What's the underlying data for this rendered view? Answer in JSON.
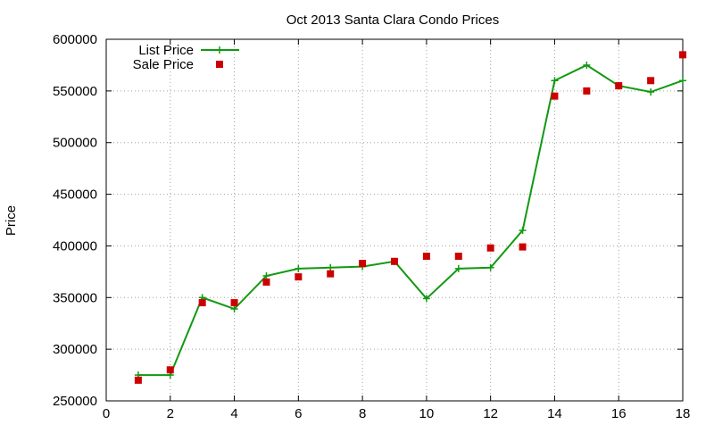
{
  "colors": {
    "list_price": "#119911",
    "sale_price": "#cc0000",
    "grid": "#a0a0a0",
    "axis": "#000000"
  },
  "chart_data": {
    "type": "line",
    "title": "Oct 2013 Santa Clara Condo Prices",
    "xlabel": "",
    "ylabel": "Price",
    "xlim": [
      0,
      18
    ],
    "ylim": [
      250000,
      600000
    ],
    "x_ticks": [
      0,
      2,
      4,
      6,
      8,
      10,
      12,
      14,
      16,
      18
    ],
    "y_ticks": [
      250000,
      300000,
      350000,
      400000,
      450000,
      500000,
      550000,
      600000
    ],
    "grid": true,
    "legend_position": "top-left",
    "series": [
      {
        "name": "List Price",
        "style": "line+cross",
        "x": [
          1,
          2,
          3,
          4,
          5,
          6,
          7,
          8,
          9,
          10,
          11,
          12,
          13,
          14,
          15,
          16,
          17,
          18
        ],
        "values": [
          275000,
          275000,
          350000,
          339000,
          371000,
          378000,
          379000,
          380000,
          385000,
          349000,
          378000,
          379000,
          415000,
          560000,
          575000,
          555000,
          549000,
          560000
        ]
      },
      {
        "name": "Sale Price",
        "style": "square-points",
        "x": [
          1,
          2,
          3,
          4,
          5,
          6,
          7,
          8,
          9,
          10,
          11,
          12,
          13,
          14,
          15,
          16,
          17,
          18
        ],
        "values": [
          270000,
          280000,
          345000,
          345000,
          365000,
          370000,
          373000,
          383000,
          385000,
          390000,
          390000,
          398000,
          399000,
          545000,
          550000,
          555000,
          560000,
          585000
        ]
      }
    ]
  }
}
